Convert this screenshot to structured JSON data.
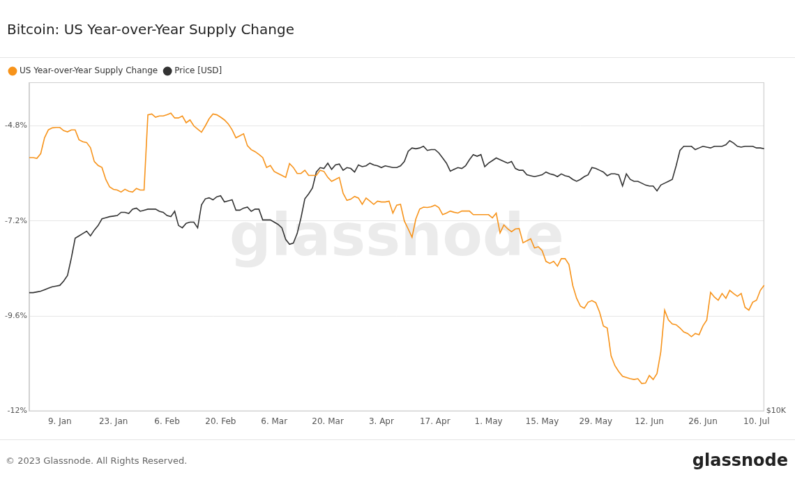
{
  "chart_data": {
    "type": "line",
    "title": "Bitcoin: US Year-over-Year Supply Change",
    "annotations": [
      "© 2023 Glassnode. All Rights Reserved.",
      "glassnode"
    ],
    "watermark": "glassnode",
    "categories": [
      null,
      null,
      null,
      null,
      null,
      null,
      null,
      null,
      "9. Jan",
      null,
      null,
      null,
      null,
      null,
      null,
      null,
      null,
      null,
      null,
      null,
      null,
      null,
      "23. Jan",
      null,
      null,
      null,
      null,
      null,
      null,
      null,
      null,
      null,
      null,
      null,
      null,
      null,
      "6. Feb",
      null,
      null,
      null,
      null,
      null,
      null,
      null,
      null,
      null,
      null,
      null,
      null,
      null,
      "20. Feb",
      null,
      null,
      null,
      null,
      null,
      null,
      null,
      null,
      null,
      null,
      null,
      null,
      null,
      "6. Mar",
      null,
      null,
      null,
      null,
      null,
      null,
      null,
      null,
      null,
      null,
      null,
      null,
      null,
      "20. Mar",
      null,
      null,
      null,
      null,
      null,
      null,
      null,
      null,
      null,
      null,
      null,
      null,
      null,
      "3. Apr",
      null,
      null,
      null,
      null,
      null,
      null,
      null,
      null,
      null,
      null,
      null,
      null,
      null,
      "17. Apr",
      null,
      null,
      null,
      null,
      null,
      null,
      null,
      null,
      null,
      null,
      null,
      null,
      null,
      "1. May",
      null,
      null,
      null,
      null,
      null,
      null,
      null,
      null,
      null,
      null,
      null,
      null,
      null,
      "15. May",
      null,
      null,
      null,
      null,
      null,
      null,
      null,
      null,
      null,
      null,
      null,
      null,
      null,
      "29. May",
      null,
      null,
      null,
      null,
      null,
      null,
      null,
      null,
      null,
      null,
      null,
      null,
      null,
      "12. Jun",
      null,
      null,
      null,
      null,
      null,
      null,
      null,
      null,
      null,
      null,
      null,
      null,
      null,
      "26. Jun",
      null,
      null,
      null,
      null,
      null,
      null,
      null,
      null,
      null,
      null,
      null,
      null,
      null,
      "10. Jul",
      null,
      null
    ],
    "series": [
      {
        "name": "US Year-over-Year Supply Change",
        "color": "#f7931a",
        "values": [
          -5.6,
          -5.6,
          -5.62,
          -5.5,
          -5.1,
          -4.9,
          -4.85,
          -4.84,
          -4.84,
          -4.92,
          -4.95,
          -4.9,
          -4.9,
          -5.15,
          -5.2,
          -5.22,
          -5.35,
          -5.7,
          -5.8,
          -5.85,
          -6.15,
          -6.34,
          -6.4,
          -6.42,
          -6.47,
          -6.4,
          -6.45,
          -6.47,
          -6.38,
          -6.42,
          -6.42,
          -4.52,
          -4.5,
          -4.58,
          -4.55,
          -4.55,
          -4.52,
          -4.48,
          -4.6,
          -4.6,
          -4.55,
          -4.72,
          -4.65,
          -4.8,
          -4.88,
          -4.96,
          -4.8,
          -4.62,
          -4.5,
          -4.52,
          -4.58,
          -4.65,
          -4.75,
          -4.9,
          -5.1,
          -5.05,
          -5.0,
          -5.3,
          -5.4,
          -5.45,
          -5.52,
          -5.6,
          -5.85,
          -5.8,
          -5.95,
          -6.0,
          -6.05,
          -6.1,
          -5.75,
          -5.85,
          -6.0,
          -6.0,
          -5.92,
          -6.05,
          -6.05,
          -6.05,
          -5.92,
          -5.95,
          -6.1,
          -6.2,
          -6.15,
          -6.1,
          -6.5,
          -6.68,
          -6.65,
          -6.58,
          -6.62,
          -6.78,
          -6.62,
          -6.7,
          -6.78,
          -6.7,
          -6.72,
          -6.72,
          -6.7,
          -7.0,
          -6.8,
          -6.78,
          -7.2,
          -7.4,
          -7.61,
          -7.15,
          -6.9,
          -6.85,
          -6.86,
          -6.84,
          -6.8,
          -6.86,
          -7.04,
          -7.0,
          -6.95,
          -6.98,
          -7.0,
          -6.95,
          -6.95,
          -6.95,
          -7.04,
          -7.04,
          -7.04,
          -7.04,
          -7.04,
          -7.12,
          -7.0,
          -7.5,
          -7.3,
          -7.4,
          -7.47,
          -7.4,
          -7.39,
          -7.75,
          -7.7,
          -7.65,
          -7.88,
          -7.85,
          -7.95,
          -8.22,
          -8.27,
          -8.22,
          -8.34,
          -8.15,
          -8.15,
          -8.3,
          -8.83,
          -9.15,
          -9.35,
          -9.4,
          -9.25,
          -9.21,
          -9.26,
          -9.5,
          -9.85,
          -9.9,
          -10.6,
          -10.85,
          -11.0,
          -11.12,
          -11.15,
          -11.18,
          -11.2,
          -11.18,
          -11.3,
          -11.29,
          -11.1,
          -11.2,
          -11.05,
          -10.5,
          -9.45,
          -9.7,
          -9.8,
          -9.82,
          -9.9,
          -10.0,
          -10.04,
          -10.12,
          -10.04,
          -10.07,
          -9.85,
          -9.7,
          -9.0,
          -9.12,
          -9.2,
          -9.03,
          -9.15,
          -8.95,
          -9.03,
          -9.1,
          -9.03,
          -9.38,
          -9.45,
          -9.25,
          -9.2,
          -8.95,
          -8.82
        ]
      },
      {
        "name": "Price [USD]",
        "color": "#333333",
        "axis": "y2",
        "values": [
          16300,
          16300,
          16350,
          16400,
          16500,
          16600,
          16700,
          16750,
          16800,
          17100,
          17500,
          18800,
          20400,
          20600,
          20800,
          21000,
          20600,
          21100,
          21500,
          22100,
          22200,
          22300,
          22350,
          22400,
          22700,
          22700,
          22600,
          23000,
          23100,
          22800,
          22900,
          23000,
          23000,
          23000,
          22800,
          22700,
          22400,
          22300,
          22800,
          21500,
          21300,
          21700,
          21800,
          21800,
          21300,
          23400,
          24000,
          24100,
          23900,
          24200,
          24300,
          23700,
          23800,
          23900,
          22900,
          22900,
          23100,
          23200,
          22800,
          23000,
          23000,
          22000,
          22000,
          22000,
          21800,
          21600,
          21300,
          20300,
          19900,
          20000,
          20800,
          22200,
          24000,
          24500,
          25100,
          26800,
          27300,
          27200,
          27800,
          27100,
          27600,
          27700,
          27000,
          27300,
          27200,
          26800,
          27600,
          27400,
          27500,
          27800,
          27600,
          27500,
          27300,
          27500,
          27400,
          27300,
          27300,
          27500,
          28000,
          29200,
          29600,
          29500,
          29600,
          29800,
          29300,
          29400,
          29400,
          29000,
          28400,
          27800,
          26900,
          27100,
          27300,
          27200,
          27500,
          28200,
          28800,
          28600,
          28800,
          27400,
          27800,
          28100,
          28400,
          28200,
          28000,
          27800,
          28000,
          27200,
          27000,
          27000,
          26500,
          26400,
          26300,
          26400,
          26500,
          26800,
          26600,
          26500,
          26300,
          26600,
          26400,
          26300,
          26000,
          25800,
          26000,
          26300,
          26500,
          27300,
          27200,
          27000,
          26800,
          26400,
          26600,
          26600,
          26500,
          25300,
          26600,
          26000,
          25800,
          25800,
          25600,
          25400,
          25300,
          25300,
          24800,
          25400,
          25600,
          25800,
          26000,
          27500,
          29300,
          29800,
          29800,
          29800,
          29400,
          29600,
          29800,
          29700,
          29600,
          29800,
          29800,
          29800,
          30000,
          30500,
          30200,
          29800,
          29700,
          29800,
          29800,
          29800,
          29600,
          29600,
          29500
        ]
      }
    ],
    "ylim": [
      -12,
      -3.7
    ],
    "yticks": [
      {
        "value": -12,
        "label": "-12%"
      },
      {
        "value": -9.6,
        "label": "-9.6%"
      },
      {
        "value": -7.2,
        "label": "-7.2%"
      },
      {
        "value": -4.8,
        "label": "-4.8%"
      }
    ],
    "y2lim": [
      10000,
      38800
    ],
    "y2ticks": [
      {
        "value": 10000,
        "label": "$10K"
      }
    ],
    "log": "y2",
    "grid": true,
    "legend": "top-left"
  }
}
